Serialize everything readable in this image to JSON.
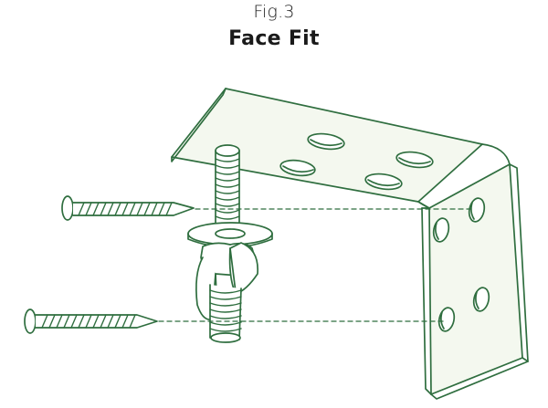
{
  "figure": {
    "label": "Fig.3",
    "title": "Face Fit"
  },
  "colors": {
    "stroke": "#2f6e3f",
    "fill": "#f4f8ef",
    "background": "#ffffff",
    "text": "#1a1a1a"
  },
  "diagram": {
    "parts": [
      "corner-bracket",
      "threaded-rod",
      "washer",
      "wing-nut",
      "upper-screw",
      "lower-screw",
      "guide-line-upper",
      "guide-line-lower"
    ]
  }
}
